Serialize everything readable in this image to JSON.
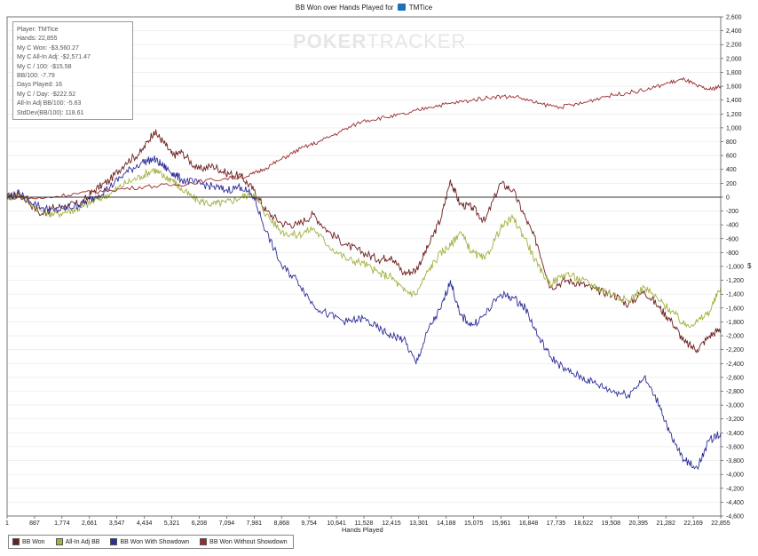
{
  "title": {
    "prefix": "BB Won over Hands Played for",
    "player": "TMTice"
  },
  "watermark": {
    "bold": "POKER",
    "thin": "TRACKER"
  },
  "stats": [
    "Player: TMTice",
    "Hands: 22,855",
    "My C Won: -$3,560.27",
    "My C All-In Adj: -$2,571.47",
    "My C / 100: -$15.58",
    "BB/100: -7.79",
    "Days Played: 16",
    "My C / Day: -$222.52",
    "All-In Adj BB/100: -5.63",
    "StdDev(BB/100): 118.61"
  ],
  "colors": {
    "bb_won": "#6e1f1f",
    "all_in_adj": "#a4b040",
    "with_showdown": "#2e2e9a",
    "without_showdown": "#9a2a2a",
    "grid": "#e8e8e8",
    "zero_line": "#333333"
  },
  "chart_data": {
    "type": "line",
    "xlabel": "Hands Played",
    "ylabel": "$",
    "xlim": [
      1,
      22855
    ],
    "ylim": [
      -4600,
      2600
    ],
    "x_ticks": [
      "1",
      "887",
      "1,774",
      "2,661",
      "3,547",
      "4,434",
      "5,321",
      "6,208",
      "7,094",
      "7,981",
      "8,868",
      "9,754",
      "10,641",
      "11,528",
      "12,415",
      "13,301",
      "14,188",
      "15,075",
      "15,961",
      "16,848",
      "17,735",
      "18,622",
      "19,508",
      "20,395",
      "21,282",
      "22,169",
      "22,855"
    ],
    "y_ticks": [
      "2,600",
      "2,400",
      "2,200",
      "2,000",
      "1,800",
      "1,600",
      "1,400",
      "1,200",
      "1,000",
      "800",
      "600",
      "400",
      "200",
      "0",
      "-200",
      "-400",
      "-600",
      "-800",
      "-1,000",
      "-1,200",
      "-1,400",
      "-1,600",
      "-1,800",
      "-2,000",
      "-2,200",
      "-2,400",
      "-2,600",
      "-2,800",
      "-3,000",
      "-3,200",
      "-3,400",
      "-3,600",
      "-3,800",
      "-4,000",
      "-4,200",
      "-4,400",
      "-4,600"
    ],
    "y_tick_values": [
      2600,
      2400,
      2200,
      2000,
      1800,
      1600,
      1400,
      1200,
      1000,
      800,
      600,
      400,
      200,
      0,
      -200,
      -400,
      -600,
      -800,
      -1000,
      -1200,
      -1400,
      -1600,
      -1800,
      -2000,
      -2200,
      -2400,
      -2600,
      -2800,
      -3000,
      -3200,
      -3400,
      -3600,
      -3800,
      -4000,
      -4200,
      -4400,
      -4600
    ],
    "grid": true,
    "legend_position": "bottom-left",
    "series": [
      {
        "name": "BB Won",
        "color_key": "bb_won",
        "x": [
          1,
          400,
          1100,
          1500,
          2000,
          2400,
          2800,
          3300,
          3800,
          4300,
          4700,
          5000,
          5300,
          5600,
          6100,
          6600,
          7000,
          7500,
          7900,
          8300,
          8800,
          9300,
          9800,
          10300,
          10900,
          11400,
          11900,
          12300,
          12700,
          13100,
          13500,
          13900,
          14200,
          14500,
          14900,
          15300,
          15800,
          16200,
          16600,
          17000,
          17400,
          17900,
          18400,
          18900,
          19400,
          19900,
          20400,
          20900,
          21300,
          21700,
          22100,
          22500,
          22855
        ],
        "y": [
          0,
          60,
          -250,
          -150,
          -120,
          -80,
          100,
          250,
          500,
          650,
          950,
          800,
          600,
          650,
          400,
          450,
          350,
          300,
          100,
          -200,
          -380,
          -400,
          -250,
          -500,
          -700,
          -800,
          -900,
          -850,
          -1100,
          -1050,
          -700,
          -300,
          250,
          -100,
          -150,
          -350,
          200,
          100,
          -300,
          -700,
          -1300,
          -1200,
          -1250,
          -1350,
          -1400,
          -1550,
          -1350,
          -1600,
          -1800,
          -2100,
          -2200,
          -2000,
          -1900
        ]
      },
      {
        "name": "All-In Adj BB",
        "color_key": "all_in_adj",
        "x": [
          1,
          400,
          1100,
          1500,
          2000,
          2400,
          2800,
          3300,
          3800,
          4300,
          4700,
          5000,
          5300,
          5600,
          6100,
          6600,
          7000,
          7500,
          7900,
          8300,
          8800,
          9300,
          9800,
          10300,
          10900,
          11400,
          11900,
          12300,
          12700,
          13100,
          13500,
          13900,
          14200,
          14500,
          14900,
          15300,
          15800,
          16200,
          16600,
          17000,
          17400,
          17900,
          18400,
          18900,
          19400,
          19900,
          20400,
          20900,
          21300,
          21700,
          22100,
          22500,
          22855
        ],
        "y": [
          0,
          40,
          -200,
          -250,
          -200,
          -150,
          -50,
          50,
          200,
          300,
          400,
          300,
          250,
          100,
          -50,
          -100,
          -80,
          0,
          50,
          -250,
          -500,
          -550,
          -450,
          -700,
          -900,
          -950,
          -1100,
          -1150,
          -1350,
          -1400,
          -1050,
          -800,
          -700,
          -500,
          -800,
          -900,
          -450,
          -300,
          -600,
          -1000,
          -1250,
          -1100,
          -1200,
          -1300,
          -1400,
          -1500,
          -1300,
          -1500,
          -1650,
          -1850,
          -1800,
          -1650,
          -1300
        ]
      },
      {
        "name": "BB Won With Showdown",
        "color_key": "with_showdown",
        "x": [
          1,
          400,
          1100,
          1500,
          2000,
          2400,
          2800,
          3300,
          3800,
          4300,
          4700,
          5000,
          5300,
          5600,
          6100,
          6600,
          7000,
          7500,
          7900,
          8300,
          8800,
          9300,
          9800,
          10300,
          10900,
          11400,
          11900,
          12300,
          12700,
          13100,
          13500,
          13900,
          14200,
          14500,
          14900,
          15300,
          15800,
          16200,
          16600,
          17000,
          17400,
          17900,
          18400,
          18900,
          19400,
          19900,
          20400,
          20900,
          21300,
          21700,
          22100,
          22500,
          22855
        ],
        "y": [
          0,
          50,
          -150,
          -200,
          -150,
          -100,
          0,
          150,
          350,
          500,
          550,
          450,
          350,
          250,
          200,
          150,
          100,
          150,
          0,
          -500,
          -1000,
          -1200,
          -1550,
          -1700,
          -1800,
          -1750,
          -1900,
          -2000,
          -2050,
          -2400,
          -1900,
          -1600,
          -1200,
          -1700,
          -1850,
          -1700,
          -1400,
          -1450,
          -1600,
          -2000,
          -2300,
          -2500,
          -2600,
          -2700,
          -2800,
          -2850,
          -2600,
          -3000,
          -3500,
          -3800,
          -3900,
          -3500,
          -3400
        ]
      },
      {
        "name": "BB Won Without Showdown",
        "color_key": "without_showdown",
        "x": [
          1,
          1100,
          2200,
          3300,
          4400,
          5500,
          6600,
          7700,
          8200,
          8800,
          9400,
          10000,
          10700,
          11400,
          12100,
          12800,
          13500,
          14200,
          14900,
          15600,
          16300,
          17000,
          17700,
          18400,
          19100,
          19800,
          20500,
          21200,
          21700,
          22100,
          22500,
          22855
        ],
        "y": [
          0,
          -20,
          50,
          100,
          150,
          180,
          250,
          300,
          400,
          550,
          700,
          800,
          950,
          1100,
          1150,
          1200,
          1300,
          1350,
          1400,
          1450,
          1450,
          1350,
          1300,
          1350,
          1450,
          1500,
          1550,
          1650,
          1700,
          1600,
          1550,
          1600
        ]
      }
    ]
  }
}
